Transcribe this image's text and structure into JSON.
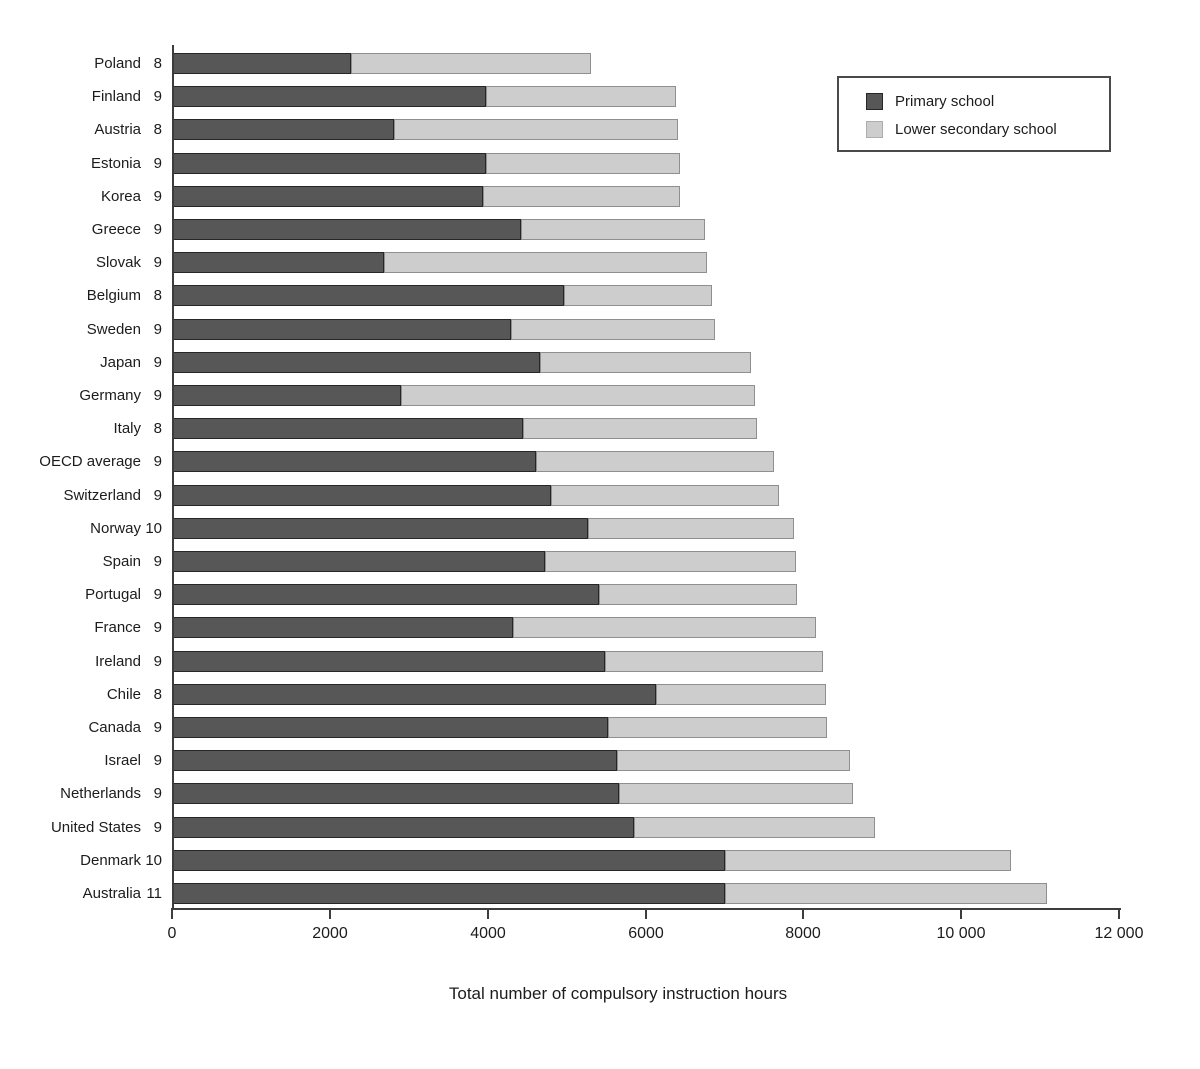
{
  "chart_data": {
    "type": "bar",
    "orientation": "horizontal",
    "stacked": true,
    "title": "",
    "xlabel": "Total number of compulsory instruction hours",
    "ylabel": "",
    "xlim": [
      0,
      12000
    ],
    "grid": false,
    "legend_position": "top-right",
    "xticks": [
      0,
      2000,
      4000,
      6000,
      8000,
      10000,
      12000
    ],
    "xtick_labels": [
      "0",
      "2000",
      "4000",
      "6000",
      "8000",
      "10 000",
      "12 000"
    ],
    "series_names": [
      "Primary school",
      "Lower secondary school"
    ],
    "legend": [
      {
        "label": "Primary school",
        "color": "#575757"
      },
      {
        "label": "Lower secondary school",
        "color": "#cdcdcd"
      }
    ],
    "colors": {
      "primary": "#575757",
      "lower_secondary": "#cdcdcd",
      "axis": "#3d3d3d",
      "text": "#1c1c1c"
    },
    "rows": [
      {
        "country": "Poland",
        "years": "8",
        "primary": 2250,
        "lower_secondary": 3050,
        "total": 5300
      },
      {
        "country": "Finland",
        "years": "9",
        "primary": 3960,
        "lower_secondary": 2420,
        "total": 6380
      },
      {
        "country": "Austria",
        "years": "8",
        "primary": 2800,
        "lower_secondary": 3600,
        "total": 6400
      },
      {
        "country": "Estonia",
        "years": "9",
        "primary": 3970,
        "lower_secondary": 2450,
        "total": 6420
      },
      {
        "country": "Korea",
        "years": "9",
        "primary": 3930,
        "lower_secondary": 2500,
        "total": 6430
      },
      {
        "country": "Greece",
        "years": "9",
        "primary": 4410,
        "lower_secondary": 2330,
        "total": 6740
      },
      {
        "country": "Slovak",
        "years": "9",
        "primary": 2680,
        "lower_secondary": 4090,
        "total": 6770
      },
      {
        "country": "Belgium",
        "years": "8",
        "primary": 4960,
        "lower_secondary": 1870,
        "total": 6830
      },
      {
        "country": "Sweden",
        "years": "9",
        "primary": 4280,
        "lower_secondary": 2590,
        "total": 6870
      },
      {
        "country": "Japan",
        "years": "9",
        "primary": 4650,
        "lower_secondary": 2670,
        "total": 7320
      },
      {
        "country": "Germany",
        "years": "9",
        "primary": 2890,
        "lower_secondary": 4490,
        "total": 7380
      },
      {
        "country": "Italy",
        "years": "8",
        "primary": 4440,
        "lower_secondary": 2960,
        "total": 7400
      },
      {
        "country": "OECD average",
        "years": "9",
        "primary": 4600,
        "lower_secondary": 3010,
        "total": 7610
      },
      {
        "country": "Switzerland",
        "years": "9",
        "primary": 4790,
        "lower_secondary": 2890,
        "total": 7680
      },
      {
        "country": "Norway",
        "years": "10",
        "primary": 5260,
        "lower_secondary": 2610,
        "total": 7870
      },
      {
        "country": "Spain",
        "years": "9",
        "primary": 4720,
        "lower_secondary": 3180,
        "total": 7900
      },
      {
        "country": "Portugal",
        "years": "9",
        "primary": 5400,
        "lower_secondary": 2510,
        "total": 7910
      },
      {
        "country": "France",
        "years": "9",
        "primary": 4310,
        "lower_secondary": 3840,
        "total": 8150
      },
      {
        "country": "Ireland",
        "years": "9",
        "primary": 5470,
        "lower_secondary": 2770,
        "total": 8240
      },
      {
        "country": "Chile",
        "years": "8",
        "primary": 6120,
        "lower_secondary": 2150,
        "total": 8270
      },
      {
        "country": "Canada",
        "years": "9",
        "primary": 5510,
        "lower_secondary": 2780,
        "total": 8290
      },
      {
        "country": "Israel",
        "years": "9",
        "primary": 5630,
        "lower_secondary": 2950,
        "total": 8580
      },
      {
        "country": "Netherlands",
        "years": "9",
        "primary": 5650,
        "lower_secondary": 2970,
        "total": 8620
      },
      {
        "country": "United States",
        "years": "9",
        "primary": 5840,
        "lower_secondary": 3050,
        "total": 8890
      },
      {
        "country": "Denmark",
        "years": "10",
        "primary": 7000,
        "lower_secondary": 3620,
        "total": 10620
      },
      {
        "country": "Australia",
        "years": "11",
        "primary": 7000,
        "lower_secondary": 4070,
        "total": 11070
      }
    ]
  }
}
